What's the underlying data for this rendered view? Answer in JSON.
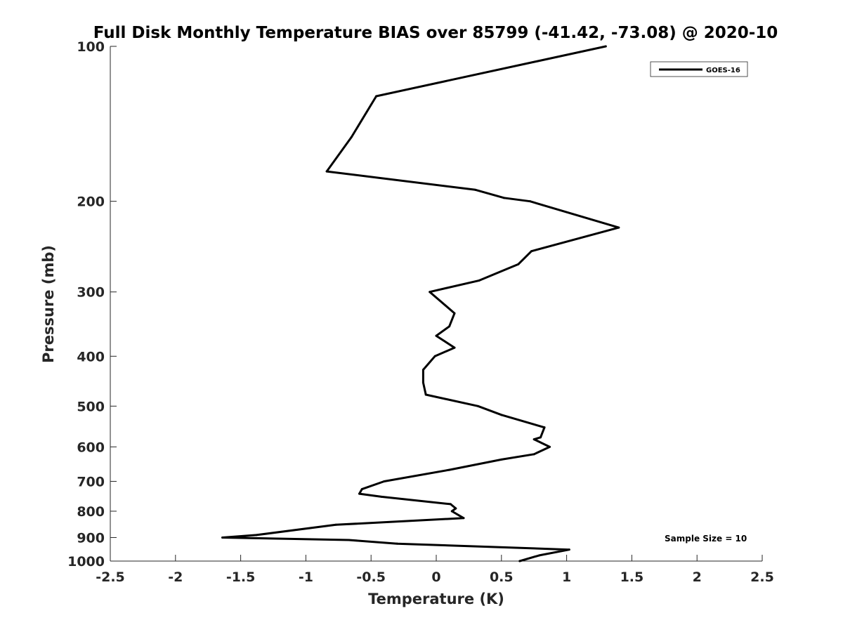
{
  "chart_data": {
    "type": "line",
    "title": "Full Disk Monthly Temperature BIAS over 85799 (-41.42, -73.08) @ 2020-10",
    "xlabel": "Temperature (K)",
    "ylabel": "Pressure (mb)",
    "xlim": [
      -2.5,
      2.5
    ],
    "ylim": [
      100,
      1000
    ],
    "y_scale": "log",
    "y_reversed": true,
    "x_ticks": [
      -2.5,
      -2,
      -1.5,
      -1,
      -0.5,
      0,
      0.5,
      1,
      1.5,
      2,
      2.5
    ],
    "x_tick_labels": [
      "-2.5",
      "-2",
      "-1.5",
      "-1",
      "-0.5",
      "0",
      "0.5",
      "1",
      "1.5",
      "2",
      "2.5"
    ],
    "y_ticks": [
      100,
      200,
      300,
      400,
      500,
      600,
      700,
      800,
      900,
      1000
    ],
    "y_tick_labels": [
      "100",
      "200",
      "300",
      "400",
      "500",
      "600",
      "700",
      "800",
      "900",
      "1000"
    ],
    "grid": false,
    "legend_position": "top-right",
    "series": [
      {
        "name": "GOES-16",
        "color": "#000000",
        "points": [
          {
            "x": 1.3,
            "y": 100
          },
          {
            "x": -0.46,
            "y": 125
          },
          {
            "x": -0.65,
            "y": 150
          },
          {
            "x": -0.84,
            "y": 175
          },
          {
            "x": 0.3,
            "y": 190
          },
          {
            "x": 0.52,
            "y": 197
          },
          {
            "x": 0.72,
            "y": 200
          },
          {
            "x": 1.4,
            "y": 225
          },
          {
            "x": 0.73,
            "y": 250
          },
          {
            "x": 0.63,
            "y": 265
          },
          {
            "x": 0.33,
            "y": 285
          },
          {
            "x": -0.05,
            "y": 300
          },
          {
            "x": 0.14,
            "y": 330
          },
          {
            "x": 0.1,
            "y": 350
          },
          {
            "x": 0.0,
            "y": 365
          },
          {
            "x": 0.14,
            "y": 385
          },
          {
            "x": -0.01,
            "y": 400
          },
          {
            "x": -0.1,
            "y": 425
          },
          {
            "x": -0.1,
            "y": 450
          },
          {
            "x": -0.08,
            "y": 475
          },
          {
            "x": 0.32,
            "y": 500
          },
          {
            "x": 0.5,
            "y": 520
          },
          {
            "x": 0.83,
            "y": 550
          },
          {
            "x": 0.8,
            "y": 575
          },
          {
            "x": 0.75,
            "y": 580
          },
          {
            "x": 0.87,
            "y": 600
          },
          {
            "x": 0.75,
            "y": 620
          },
          {
            "x": 0.5,
            "y": 635
          },
          {
            "x": 0.1,
            "y": 665
          },
          {
            "x": -0.4,
            "y": 700
          },
          {
            "x": -0.57,
            "y": 725
          },
          {
            "x": -0.59,
            "y": 740
          },
          {
            "x": -0.42,
            "y": 750
          },
          {
            "x": 0.11,
            "y": 775
          },
          {
            "x": 0.15,
            "y": 790
          },
          {
            "x": 0.12,
            "y": 800
          },
          {
            "x": 0.21,
            "y": 825
          },
          {
            "x": -0.77,
            "y": 850
          },
          {
            "x": -1.38,
            "y": 890
          },
          {
            "x": -1.64,
            "y": 900
          },
          {
            "x": -0.67,
            "y": 910
          },
          {
            "x": -0.3,
            "y": 925
          },
          {
            "x": 1.02,
            "y": 950
          },
          {
            "x": 0.79,
            "y": 975
          },
          {
            "x": 0.64,
            "y": 1000
          }
        ]
      }
    ],
    "annotation": "Sample Size = 10"
  }
}
